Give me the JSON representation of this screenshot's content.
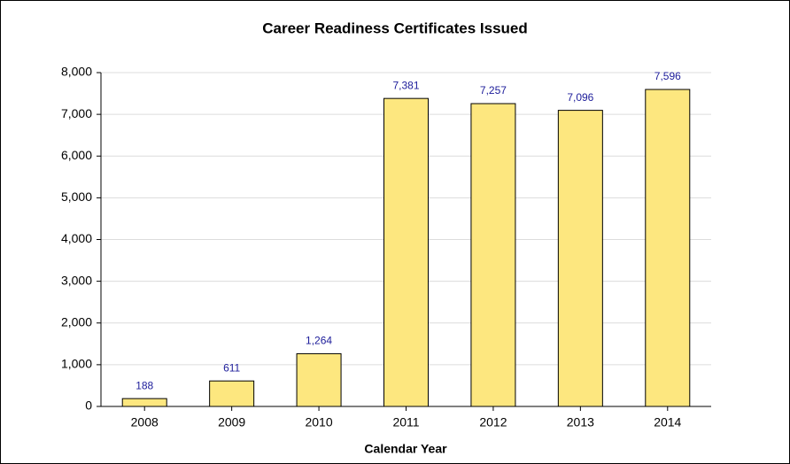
{
  "chart_data": {
    "type": "bar",
    "title": "Career Readiness Certificates Issued",
    "x_label": "Calendar Year",
    "categories": [
      "2008",
      "2009",
      "2010",
      "2011",
      "2012",
      "2013",
      "2014"
    ],
    "values": [
      188,
      611,
      1264,
      7381,
      7257,
      7096,
      7596
    ],
    "value_labels": [
      "188",
      "611",
      "1,264",
      "7,381",
      "7,257",
      "7,096",
      "7,596"
    ],
    "color": "#fde77f",
    "ylim": [
      0,
      8000
    ],
    "yticks": [
      0,
      {
        "value": 1000,
        "label": "1,000"
      },
      {
        "value": 2000,
        "label": "2,000"
      },
      {
        "value": 3000,
        "label": "3,000"
      },
      {
        "value": 4000,
        "label": "4,000"
      },
      {
        "value": 5000,
        "label": "5,000"
      },
      {
        "value": 6000,
        "label": "6,000"
      },
      {
        "value": 7000,
        "label": "7,000"
      },
      {
        "value": 8000,
        "label": "8,000"
      }
    ],
    "grid": true
  }
}
